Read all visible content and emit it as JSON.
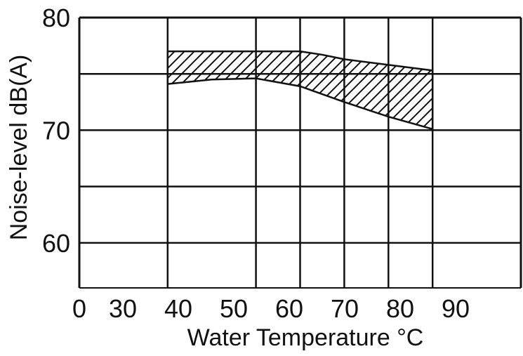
{
  "chart_data": {
    "type": "area",
    "title": "",
    "xlabel": "Water Temperature °C",
    "ylabel": "Noise-level dB(A)",
    "xlim": [
      10,
      110
    ],
    "ylim": [
      56,
      80
    ],
    "x_ticks": [
      "0",
      "30",
      "40",
      "50",
      "60",
      "70",
      "80",
      "90"
    ],
    "y_ticks": [
      "60",
      "70",
      "80"
    ],
    "grid": true,
    "series": [
      {
        "type": "band",
        "fill": "hatched",
        "x": [
          30,
          40,
          50,
          60,
          65,
          70,
          80,
          90
        ],
        "upper": [
          77.0,
          77.0,
          77.0,
          77.0,
          76.7,
          76.3,
          75.8,
          75.3
        ],
        "lower": [
          74.1,
          74.5,
          74.6,
          73.9,
          73.2,
          72.5,
          71.2,
          70.1
        ]
      }
    ]
  }
}
